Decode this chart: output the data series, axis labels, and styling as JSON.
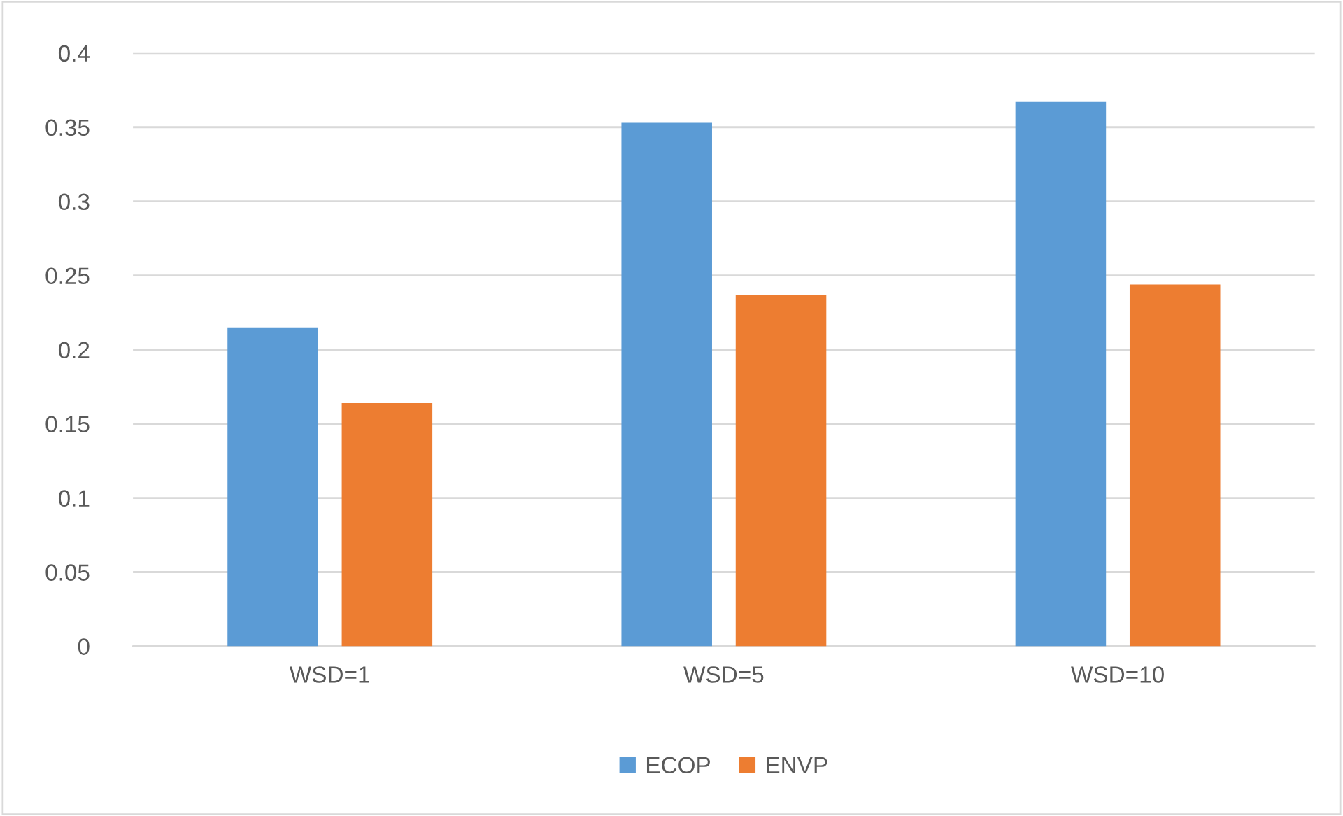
{
  "chart_data": {
    "type": "bar",
    "categories": [
      "WSD=1",
      "WSD=5",
      "WSD=10"
    ],
    "series": [
      {
        "name": "ECOP",
        "color": "#5b9bd5",
        "values": [
          0.215,
          0.353,
          0.367
        ]
      },
      {
        "name": "ENVP",
        "color": "#ed7d31",
        "values": [
          0.164,
          0.237,
          0.244
        ]
      }
    ],
    "ylim": [
      0,
      0.4
    ],
    "yticks": [
      0,
      0.05,
      0.1,
      0.15,
      0.2,
      0.25,
      0.3,
      0.35,
      0.4
    ],
    "grid": "y",
    "legend": "bottom"
  }
}
